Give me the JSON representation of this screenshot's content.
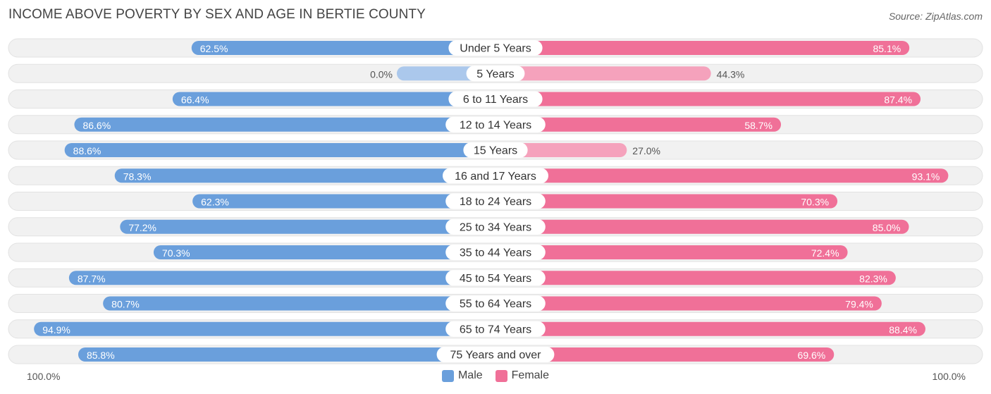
{
  "title": "INCOME ABOVE POVERTY BY SEX AND AGE IN BERTIE COUNTY",
  "source": "Source: ZipAtlas.com",
  "axis": {
    "left_label": "100.0%",
    "right_label": "100.0%"
  },
  "legend": {
    "male_label": "Male",
    "female_label": "Female"
  },
  "colors": {
    "male_strong": "#6a9fdc",
    "male_light": "#abc8ec",
    "female_strong": "#f07098",
    "female_light": "#f5a2bc",
    "row_bg": "#f1f1f1"
  },
  "chart_data": {
    "type": "bar",
    "orientation": "horizontal-diverging",
    "title": "INCOME ABOVE POVERTY BY SEX AND AGE IN BERTIE COUNTY",
    "xlim": [
      -100,
      100
    ],
    "categories": [
      "Under 5 Years",
      "5 Years",
      "6 to 11 Years",
      "12 to 14 Years",
      "15 Years",
      "16 and 17 Years",
      "18 to 24 Years",
      "25 to 34 Years",
      "35 to 44 Years",
      "45 to 54 Years",
      "55 to 64 Years",
      "65 to 74 Years",
      "75 Years and over"
    ],
    "series": [
      {
        "name": "Male",
        "values": [
          62.5,
          0.0,
          66.4,
          86.6,
          88.6,
          78.3,
          62.3,
          77.2,
          70.3,
          87.7,
          80.7,
          94.9,
          85.8
        ],
        "labels": [
          "62.5%",
          "0.0%",
          "66.4%",
          "86.6%",
          "88.6%",
          "78.3%",
          "62.3%",
          "77.2%",
          "70.3%",
          "87.7%",
          "80.7%",
          "94.9%",
          "85.8%"
        ]
      },
      {
        "name": "Female",
        "values": [
          85.1,
          44.3,
          87.4,
          58.7,
          27.0,
          93.1,
          70.3,
          85.0,
          72.4,
          82.3,
          79.4,
          88.4,
          69.6
        ],
        "labels": [
          "85.1%",
          "44.3%",
          "87.4%",
          "58.7%",
          "27.0%",
          "93.1%",
          "70.3%",
          "85.0%",
          "72.4%",
          "82.3%",
          "79.4%",
          "88.4%",
          "69.6%"
        ]
      }
    ]
  }
}
